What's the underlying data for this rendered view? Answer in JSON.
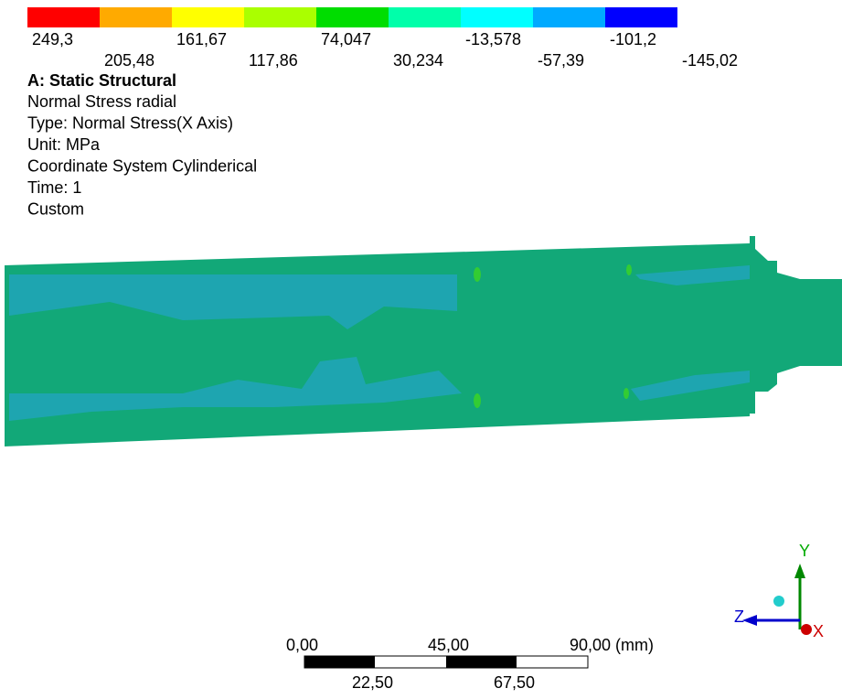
{
  "legend": {
    "colors": [
      "#ff0000",
      "#ffaa00",
      "#ffff00",
      "#aaff00",
      "#00dd00",
      "#00ffaa",
      "#00ffff",
      "#00aaff",
      "#0000ff"
    ],
    "labels": [
      "249,3",
      "205,48",
      "161,67",
      "117,86",
      "74,047",
      "30,234",
      "-13,578",
      "-57,39",
      "-101,2",
      "-145,02"
    ]
  },
  "info": {
    "title": "A: Static Structural",
    "lines": [
      "Normal Stress radial",
      "Type: Normal Stress(X Axis)",
      "Unit: MPa",
      "Coordinate System Cylinderical",
      "Time: 1",
      "Custom"
    ]
  },
  "scale_bar": {
    "top_labels": [
      "0,00",
      "45,00",
      "90,00 (mm)"
    ],
    "bottom_labels": [
      "22,50",
      "67,50"
    ]
  },
  "triad": {
    "x": "X",
    "y": "Y",
    "z": "Z"
  }
}
